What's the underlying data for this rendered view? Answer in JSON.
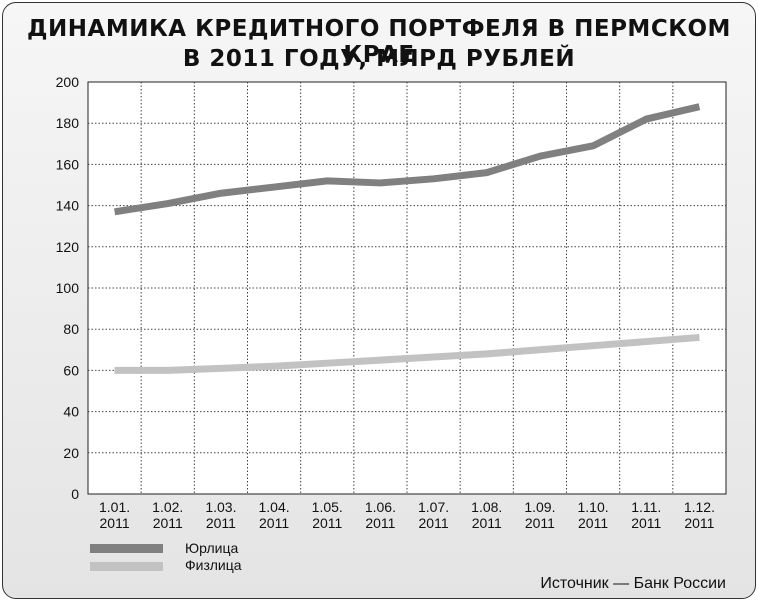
{
  "chart_data": {
    "type": "line",
    "title": "ДИНАМИКА КРЕДИТНОГО ПОРТФЕЛЯ В ПЕРМСКОМ КРАЕ",
    "subtitle": "В 2011 ГОДУ, МЛРД РУБЛЕЙ",
    "categories": [
      [
        "1.01.",
        "2011"
      ],
      [
        "1.02.",
        "2011"
      ],
      [
        "1.03.",
        "2011"
      ],
      [
        "1.04.",
        "2011"
      ],
      [
        "1.05.",
        "2011"
      ],
      [
        "1.06.",
        "2011"
      ],
      [
        "1.07.",
        "2011"
      ],
      [
        "1.08.",
        "2011"
      ],
      [
        "1.09.",
        "2011"
      ],
      [
        "1.10.",
        "2011"
      ],
      [
        "1.11.",
        "2011"
      ],
      [
        "1.12.",
        "2011"
      ]
    ],
    "ylim": [
      0,
      200
    ],
    "yticks": [
      0,
      20,
      40,
      60,
      80,
      100,
      120,
      140,
      160,
      180,
      200
    ],
    "grid": true,
    "legend_position": "bottom-left",
    "series": [
      {
        "name": "Юрлица",
        "color": "#808080",
        "values": [
          137,
          141,
          146,
          149,
          152,
          151,
          153,
          156,
          164,
          169,
          182,
          188
        ]
      },
      {
        "name": "Физлица",
        "color": "#c2c2c2",
        "values": [
          60,
          60,
          61,
          62,
          63.5,
          65,
          66.5,
          68,
          70,
          72,
          74,
          76
        ]
      }
    ],
    "source": "Источник — Банк России"
  }
}
